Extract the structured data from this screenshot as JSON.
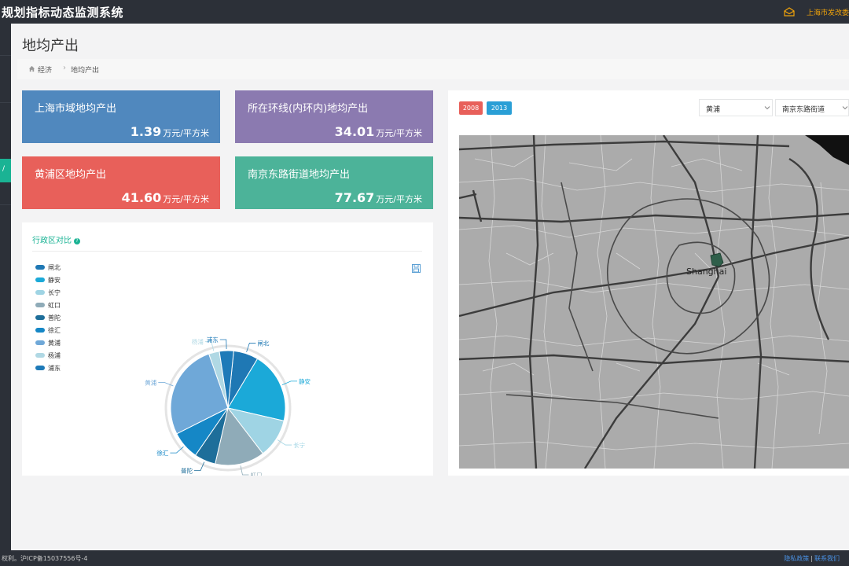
{
  "header": {
    "app_title": "规划指标动态监测系统",
    "org_name": "上海市发改委",
    "mail_icon": "mail-icon"
  },
  "sidebar": {
    "active_tab_glyph": "/"
  },
  "page": {
    "title": "地均产出",
    "breadcrumb": [
      "经济",
      "地均产出"
    ]
  },
  "kpis": [
    {
      "title": "上海市域地均产出",
      "value": "1.39",
      "unit": "万元/平方米",
      "color": "#5088be"
    },
    {
      "title": "所在环线(内环内)地均产出",
      "value": "34.01",
      "unit": "万元/平方米",
      "color": "#8b7ab0"
    },
    {
      "title": "黄浦区地均产出",
      "value": "41.60",
      "unit": "万元/平方米",
      "color": "#e8605a"
    },
    {
      "title": "南京东路街道地均产出",
      "value": "77.67",
      "unit": "万元/平方米",
      "color": "#4cb399"
    }
  ],
  "compare_panel": {
    "title": "行政区对比",
    "help_icon": "question-circle-icon",
    "save_icon": "save-icon"
  },
  "chart_data": {
    "type": "pie",
    "title": "",
    "legend_position": "left",
    "categories": [
      "闸北",
      "静安",
      "长宁",
      "虹口",
      "普陀",
      "徐汇",
      "黄浦",
      "杨浦",
      "浦东"
    ],
    "values": [
      7,
      20,
      11,
      14,
      6,
      8,
      27,
      3,
      4
    ],
    "colors": [
      "#1f78b4",
      "#1ba9d8",
      "#9fd4e4",
      "#8fabb8",
      "#1e6e9a",
      "#1587c6",
      "#6fa8d8",
      "#b0d8e4",
      "#1e7ab8"
    ]
  },
  "map_panel": {
    "years": [
      "2008",
      "2013"
    ],
    "year_colors": [
      "#e8605a",
      "#2a9fd6"
    ],
    "district_select": "黄浦",
    "street_select": "南京东路街道",
    "city_label": "Shanghai"
  },
  "footer": {
    "copyright": "权利。沪ICP备15037556号-4",
    "privacy": "隐私政策",
    "divider": "|",
    "contact": "联系我们"
  }
}
